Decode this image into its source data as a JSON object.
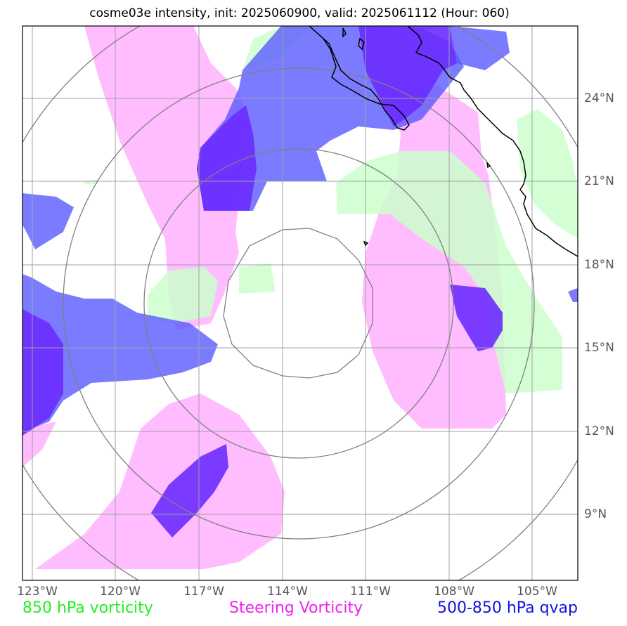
{
  "title": "cosme03e intensity, init: 2025060900, valid: 2025061112 (Hour: 060)",
  "lon_labels": [
    "123°W",
    "120°W",
    "117°W",
    "114°W",
    "111°W",
    "108°W",
    "105°W"
  ],
  "lat_labels": [
    "24°N",
    "21°N",
    "18°N",
    "15°N",
    "12°N",
    "9°N"
  ],
  "legend": {
    "vorticity_850": {
      "label": "850 hPa vorticity",
      "color": "#22ee22"
    },
    "steering": {
      "label": "Steering Vorticity",
      "color": "#ee22ee"
    },
    "qvap": {
      "label": "500-850 hPa qvap",
      "color": "#1111dd"
    }
  },
  "colors": {
    "pink_fill": "#ffb8ff",
    "green_fill": "#ccffcc",
    "blue_fill": "#6a6aff",
    "purple_fill": "#6b2bff",
    "grid": "#a0a0a0",
    "range_rings": "#808080",
    "coastline": "#000000"
  }
}
